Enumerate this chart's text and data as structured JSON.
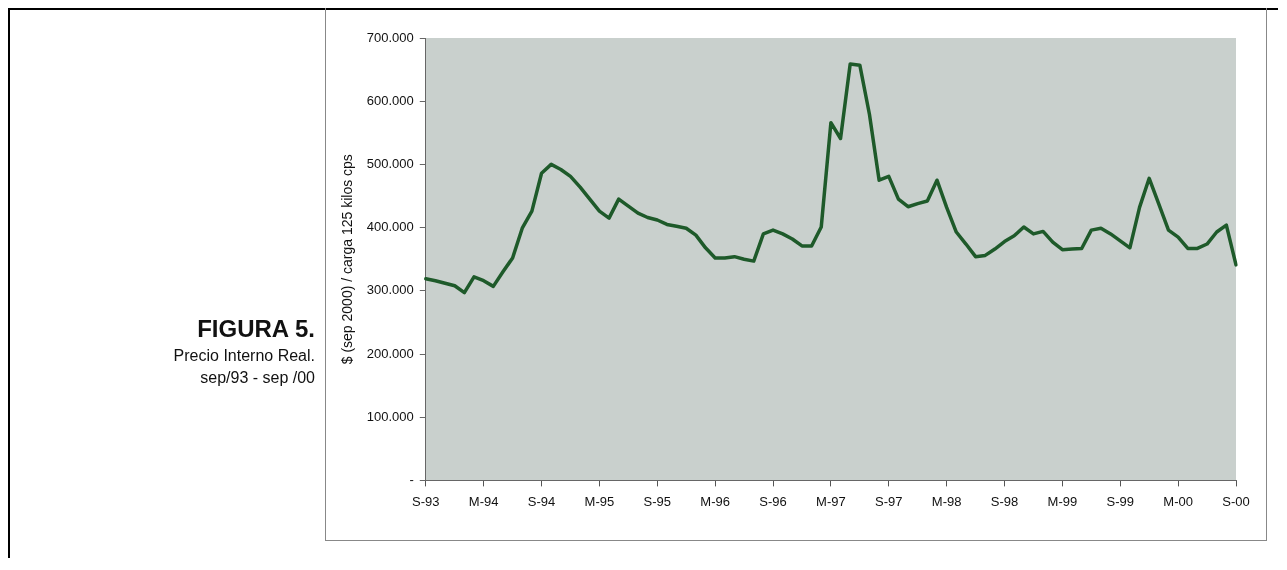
{
  "chart_data": {
    "type": "line",
    "title": "FIGURA 5.",
    "subtitle": "Precio Interno Real.",
    "annotations": [
      "sep/93 - sep /00"
    ],
    "ylabel": "$ (sep 2000) / carga 125 kilos cps",
    "categories": [
      "S-93",
      null,
      null,
      null,
      null,
      null,
      "M-94",
      null,
      null,
      null,
      null,
      null,
      "S-94",
      null,
      null,
      null,
      null,
      null,
      "M-95",
      null,
      null,
      null,
      null,
      null,
      "S-95",
      null,
      null,
      null,
      null,
      null,
      "M-96",
      null,
      null,
      null,
      null,
      null,
      "S-96",
      null,
      null,
      null,
      null,
      null,
      "M-97",
      null,
      null,
      null,
      null,
      null,
      "S-97",
      null,
      null,
      null,
      null,
      null,
      "M-98",
      null,
      null,
      null,
      null,
      null,
      "S-98",
      null,
      null,
      null,
      null,
      null,
      "M-99",
      null,
      null,
      null,
      null,
      null,
      "S-99",
      null,
      null,
      null,
      null,
      null,
      "M-00",
      null,
      null,
      null,
      null,
      null,
      "S-00"
    ],
    "series": [
      {
        "color": "#1e5a2a",
        "values": [
          319000,
          316000,
          312000,
          308000,
          297000,
          322000,
          316000,
          307000,
          330000,
          352000,
          399000,
          426000,
          486000,
          500000,
          492000,
          481000,
          464000,
          445000,
          426000,
          415000,
          445000,
          434000,
          423000,
          416000,
          412000,
          405000,
          402000,
          399000,
          388000,
          368000,
          352000,
          352000,
          354000,
          350000,
          347000,
          390000,
          396000,
          390000,
          382000,
          371000,
          371000,
          401000,
          566000,
          541000,
          659000,
          657000,
          579000,
          475000,
          481000,
          445000,
          433000,
          438000,
          442000,
          475000,
          432000,
          393000,
          374000,
          354000,
          356000,
          366000,
          378000,
          387000,
          401000,
          390000,
          394000,
          377000,
          365000,
          366000,
          367000,
          396000,
          399000,
          390000,
          379000,
          368000,
          432000,
          478000,
          437000,
          396000,
          385000,
          367000,
          367000,
          374000,
          393000,
          404000,
          341000
        ]
      }
    ],
    "ylim": [
      0,
      700000
    ],
    "yticks": [
      {
        "value": 0,
        "label": "-"
      },
      {
        "value": 100000,
        "label": "100.000"
      },
      {
        "value": 200000,
        "label": "200.000"
      },
      {
        "value": 300000,
        "label": "300.000"
      },
      {
        "value": 400000,
        "label": "400.000"
      },
      {
        "value": 500000,
        "label": "500.000"
      },
      {
        "value": 600000,
        "label": "600.000"
      },
      {
        "value": 700000,
        "label": "700.000"
      }
    ],
    "grid": false,
    "legend": false,
    "marker": "none",
    "line_style": "solid"
  }
}
